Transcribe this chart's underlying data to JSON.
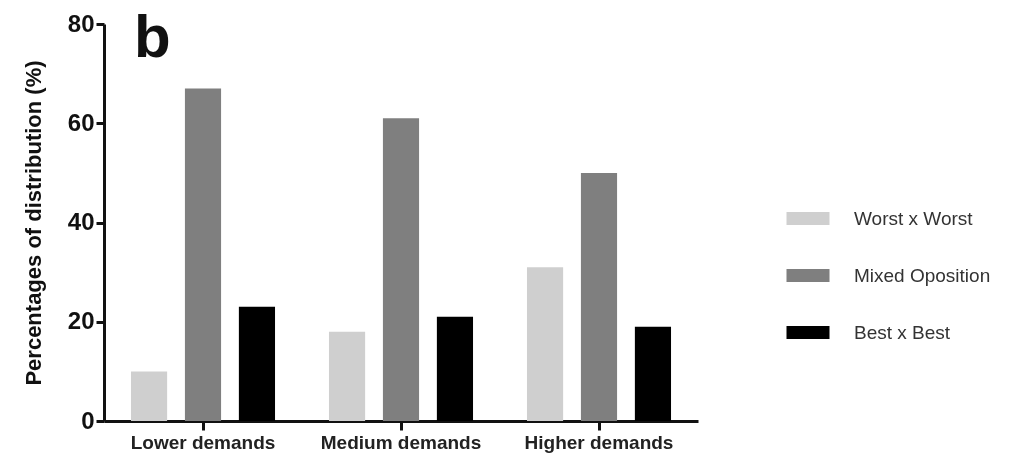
{
  "chart_data": {
    "type": "bar",
    "title": "b",
    "ylabel": "Percentages of distribution (%)",
    "categories": [
      "Lower demands",
      "Medium demands",
      "Higher demands"
    ],
    "series": [
      {
        "name": "Worst x Worst",
        "color": "#cfcfcf",
        "values": [
          10,
          18,
          31
        ]
      },
      {
        "name": "Mixed Oposition",
        "color": "#7f7f7f",
        "values": [
          67,
          61,
          50
        ]
      },
      {
        "name": "Best x Best",
        "color": "#000000",
        "values": [
          23,
          21,
          19
        ]
      }
    ],
    "ylim": [
      0,
      80
    ],
    "yticks": [
      0,
      20,
      40,
      60,
      80
    ],
    "grid": false,
    "legend": "right"
  }
}
